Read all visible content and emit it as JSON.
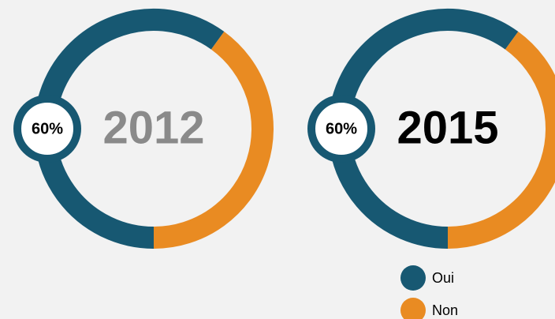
{
  "legend": [
    {
      "name": "Oui",
      "color": "#175872"
    },
    {
      "name": "Non",
      "color": "#e98b22"
    }
  ],
  "chart_data": [
    {
      "type": "donut",
      "title": "2012",
      "title_color": "#8a8a8a",
      "values": [
        60,
        40
      ],
      "value_labels": [
        "60%",
        null
      ]
    },
    {
      "type": "donut",
      "title": "2015",
      "title_color": "#000000",
      "values": [
        60,
        40
      ],
      "value_labels": [
        "60%",
        null
      ]
    }
  ]
}
